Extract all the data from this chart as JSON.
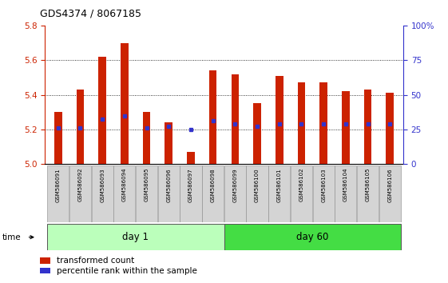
{
  "title": "GDS4374 / 8067185",
  "samples": [
    "GSM586091",
    "GSM586092",
    "GSM586093",
    "GSM586094",
    "GSM586095",
    "GSM586096",
    "GSM586097",
    "GSM586098",
    "GSM586099",
    "GSM586100",
    "GSM586101",
    "GSM586102",
    "GSM586103",
    "GSM586104",
    "GSM586105",
    "GSM586106"
  ],
  "bar_values": [
    5.3,
    5.43,
    5.62,
    5.7,
    5.3,
    5.24,
    5.07,
    5.54,
    5.52,
    5.35,
    5.51,
    5.47,
    5.47,
    5.42,
    5.43,
    5.41
  ],
  "blue_dot_values": [
    5.21,
    5.21,
    5.26,
    5.28,
    5.21,
    5.22,
    5.2,
    5.25,
    5.23,
    5.22,
    5.23,
    5.23,
    5.23,
    5.23,
    5.23,
    5.23
  ],
  "ymin": 5.0,
  "ymax": 5.8,
  "yticks_left": [
    5.0,
    5.2,
    5.4,
    5.6,
    5.8
  ],
  "yticks_right": [
    0,
    25,
    50,
    75,
    100
  ],
  "bar_color": "#cc2200",
  "dot_color": "#3333cc",
  "day1_color": "#bbffbb",
  "day60_color": "#44dd44",
  "bar_width": 0.35,
  "day1_count": 8,
  "day60_count": 8
}
